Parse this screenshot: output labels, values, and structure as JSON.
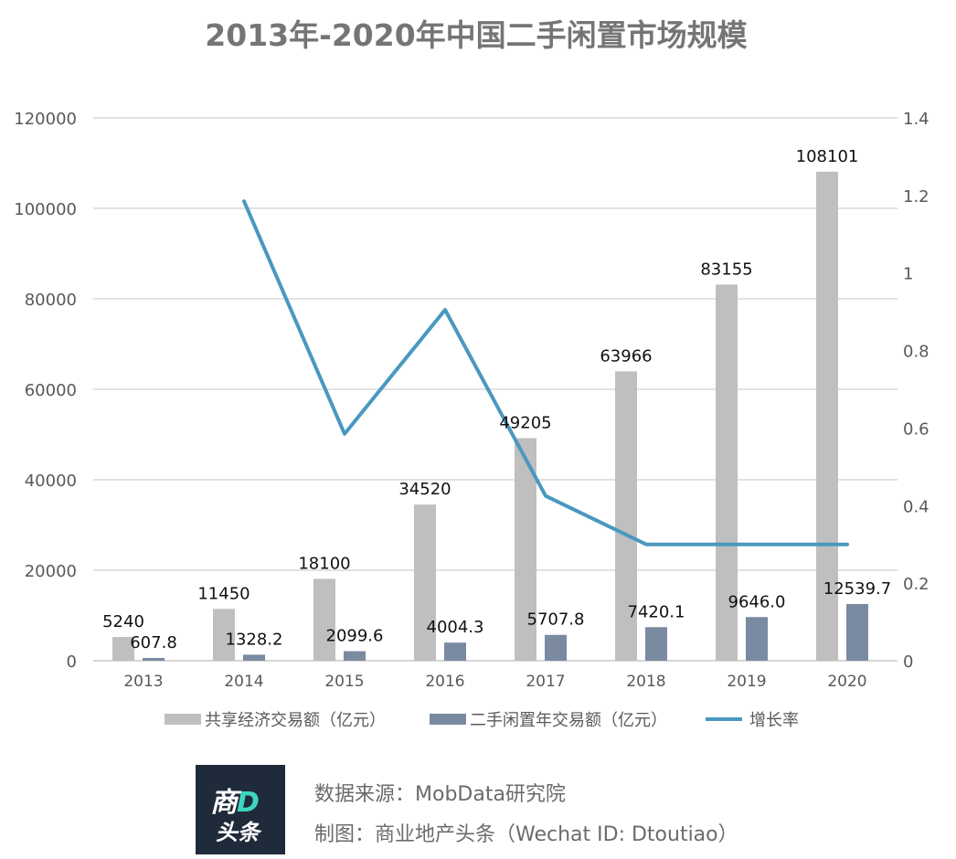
{
  "chart_data": {
    "type": "bar",
    "title": "2013年-2020年中国二手闲置市场规模",
    "categories": [
      "2013",
      "2014",
      "2015",
      "2016",
      "2017",
      "2018",
      "2019",
      "2020"
    ],
    "series": [
      {
        "name": "共享经济交易额（亿元）",
        "type": "bar",
        "axis": "left",
        "color": "#bfbfbf",
        "values": [
          5240,
          11450,
          18100,
          34520,
          49205,
          63966,
          83155,
          108101
        ],
        "labels": [
          "5240",
          "11450",
          "18100",
          "34520",
          "49205",
          "63966",
          "83155",
          "108101"
        ]
      },
      {
        "name": "二手闲置年交易额（亿元）",
        "type": "bar",
        "axis": "left",
        "color": "#7a8aa0",
        "values": [
          607.8,
          1328.2,
          2099.6,
          4004.3,
          5707.8,
          7420.1,
          9646.0,
          12539.7
        ],
        "labels": [
          "607.8",
          "1328.2",
          "2099.6",
          "4004.3",
          "5707.8",
          "7420.1",
          "9646.0",
          "12539.7"
        ]
      },
      {
        "name": "增长率",
        "type": "line",
        "axis": "right",
        "color": "#4a98bf",
        "values": [
          null,
          1.185,
          0.585,
          0.905,
          0.425,
          0.3,
          0.3,
          0.3
        ]
      }
    ],
    "ylim_left": [
      0,
      120000
    ],
    "yticks_left": [
      "0",
      "20000",
      "40000",
      "60000",
      "80000",
      "100000",
      "120000"
    ],
    "ylim_right": [
      0,
      1.4
    ],
    "yticks_right": [
      "0",
      "0.2",
      "0.4",
      "0.6",
      "0.8",
      "1",
      "1.2",
      "1.4"
    ],
    "grid": true,
    "legend_position": "bottom"
  },
  "footer": {
    "logo_top": "商",
    "logo_top_accent": "D",
    "logo_bottom": "头条",
    "source": "数据来源：MobData研究院",
    "credit": "制图：商业地产头条（Wechat ID: Dtoutiao）"
  }
}
